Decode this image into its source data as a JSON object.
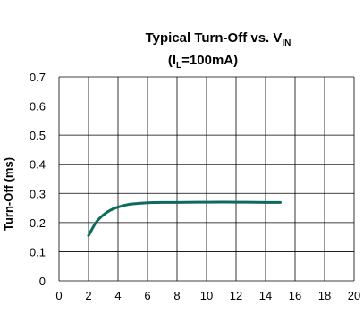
{
  "chart_data": {
    "type": "line",
    "title_parts": [
      "Typical Turn-Off vs. V",
      "IN"
    ],
    "subtitle_parts": [
      "(I",
      "L",
      "=100mA)"
    ],
    "xlabel": "",
    "ylabel": "Turn-Off (ms)",
    "xlim": [
      0,
      20
    ],
    "ylim": [
      0,
      0.7
    ],
    "xticks": [
      "0",
      "2",
      "4",
      "6",
      "8",
      "10",
      "12",
      "14",
      "16",
      "18",
      "20"
    ],
    "yticks": [
      "0",
      "0.1",
      "0.2",
      "0.3",
      "0.4",
      "0.5",
      "0.6",
      "0.7"
    ],
    "grid": true,
    "series": [
      {
        "color": "#0e6a5c",
        "x": [
          2,
          2.5,
          3,
          3.5,
          4,
          4.5,
          5,
          6,
          7,
          8,
          10,
          12,
          14,
          15
        ],
        "y": [
          0.155,
          0.2,
          0.226,
          0.243,
          0.253,
          0.26,
          0.264,
          0.268,
          0.269,
          0.269,
          0.27,
          0.27,
          0.269,
          0.269
        ]
      }
    ]
  }
}
